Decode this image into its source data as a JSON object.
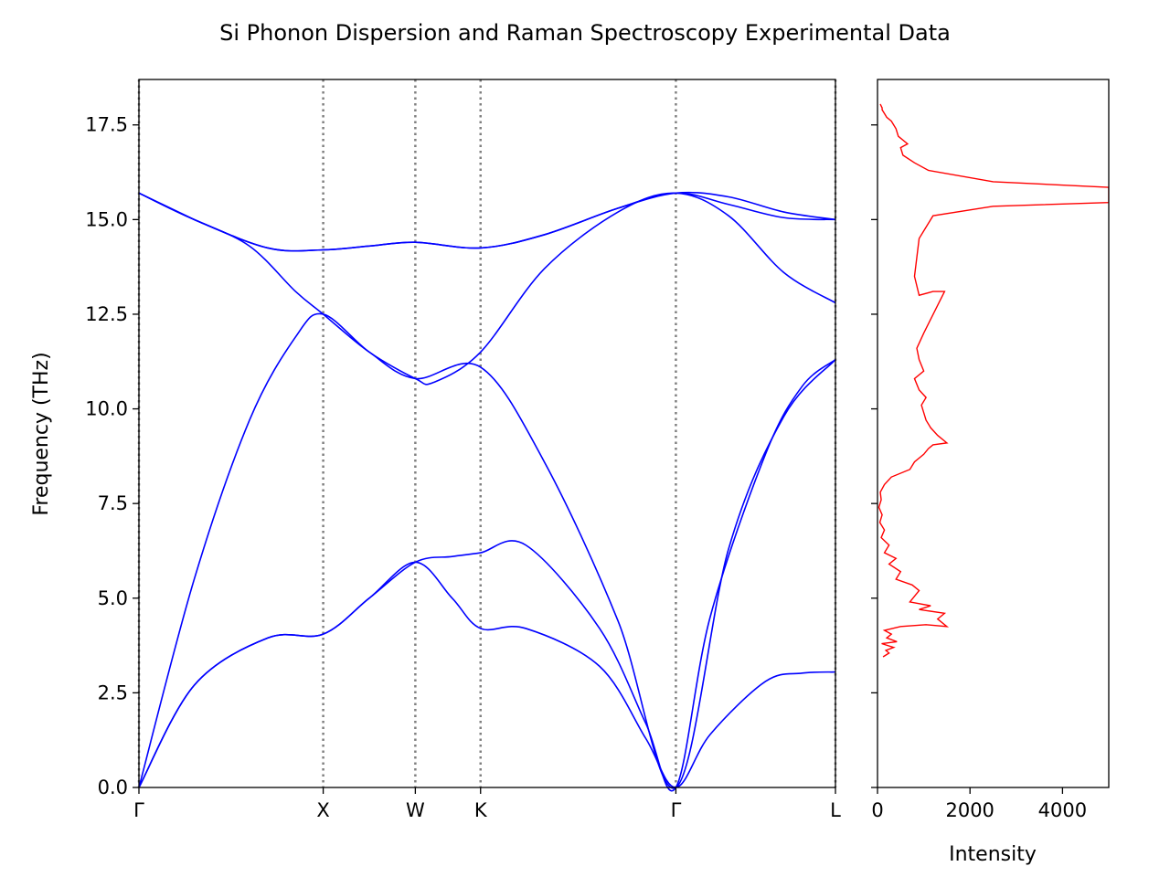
{
  "chart_data": [
    {
      "type": "line",
      "title": "Si Phonon Dispersion and Raman Spectroscopy Experimental Data",
      "xlabel": "",
      "ylabel": "Frequency (THz)",
      "ylim": [
        0,
        18.7
      ],
      "y_ticks": [
        "0.0",
        "2.5",
        "5.0",
        "7.5",
        "10.0",
        "12.5",
        "15.0",
        "17.5"
      ],
      "x_ticks": [
        {
          "label": "Γ",
          "pos": 0.0
        },
        {
          "label": "X",
          "pos": 1.0
        },
        {
          "label": "W",
          "pos": 1.5
        },
        {
          "label": "K",
          "pos": 1.854
        },
        {
          "label": "Γ",
          "pos": 2.914
        },
        {
          "label": "L",
          "pos": 3.78
        }
      ],
      "x_range": [
        0,
        3.78
      ],
      "grid": "vertical dotted lines at high-symmetry points",
      "line_color": "#0000ff",
      "series": [
        {
          "x": [
            0,
            0.3,
            0.7,
            1.0,
            1.25,
            1.5,
            1.7,
            1.854,
            2.1,
            2.5,
            2.75,
            2.914,
            3.1,
            3.4,
            3.6,
            3.78
          ],
          "y": [
            0,
            2.7,
            3.95,
            4.05,
            5.0,
            5.95,
            5.0,
            4.2,
            4.2,
            3.2,
            1.3,
            0,
            1.4,
            2.8,
            3.02,
            3.05
          ]
        },
        {
          "x": [
            0,
            0.3,
            0.7,
            1.0,
            1.25,
            1.5,
            1.7,
            1.854,
            2.1,
            2.5,
            2.75,
            2.914,
            3.1,
            3.4,
            3.6,
            3.78
          ],
          "y": [
            0,
            2.7,
            3.95,
            4.05,
            5.0,
            5.95,
            6.1,
            6.2,
            6.4,
            4.2,
            1.7,
            0,
            4.5,
            8.8,
            10.6,
            11.3
          ]
        },
        {
          "x": [
            0,
            0.3,
            0.6,
            0.85,
            1.0,
            1.25,
            1.5,
            1.854,
            2.2,
            2.6,
            2.914,
            3.2,
            3.5,
            3.78
          ],
          "y": [
            0,
            5.5,
            9.7,
            11.9,
            12.5,
            11.5,
            10.8,
            11.1,
            8.6,
            4.4,
            0,
            6.3,
            9.8,
            11.3
          ]
        },
        {
          "x": [
            0,
            0.3,
            0.6,
            0.85,
            1.0,
            1.25,
            1.5,
            1.6,
            1.854,
            2.2,
            2.6,
            2.914,
            3.2,
            3.5,
            3.78
          ],
          "y": [
            15.7,
            15.0,
            14.3,
            13.1,
            12.5,
            11.5,
            10.8,
            10.7,
            11.5,
            13.7,
            15.2,
            15.7,
            15.1,
            13.6,
            12.8
          ]
        },
        {
          "x": [
            0,
            0.3,
            0.7,
            1.0,
            1.25,
            1.5,
            1.854,
            2.2,
            2.6,
            2.914,
            3.2,
            3.5,
            3.78
          ],
          "y": [
            15.7,
            15.0,
            14.25,
            14.2,
            14.3,
            14.4,
            14.25,
            14.6,
            15.3,
            15.7,
            15.4,
            15.05,
            15.0
          ]
        },
        {
          "x": [
            0,
            0.3,
            0.7,
            1.0,
            1.25,
            1.5,
            1.854,
            2.2,
            2.6,
            2.914,
            3.2,
            3.5,
            3.78
          ],
          "y": [
            15.7,
            15.0,
            14.25,
            14.2,
            14.3,
            14.4,
            14.25,
            14.6,
            15.3,
            15.7,
            15.6,
            15.2,
            15.0
          ]
        }
      ]
    },
    {
      "type": "line",
      "xlabel": "Intensity",
      "ylabel": "",
      "xlim": [
        0,
        5000
      ],
      "ylim": [
        0,
        18.7
      ],
      "x_ticks": [
        "0",
        "2000",
        "4000"
      ],
      "line_color": "#ff0000",
      "series": [
        {
          "intensity": [
            120,
            250,
            180,
            350,
            90,
            420,
            200,
            300,
            150,
            500,
            1050,
            1500,
            1300,
            1450,
            900,
            1150,
            700,
            800,
            900,
            750,
            400,
            500,
            250,
            400,
            150,
            250,
            80,
            150,
            50,
            100,
            30,
            80,
            60,
            150,
            300,
            700,
            800,
            1000,
            1100,
            1200,
            1500,
            1300,
            1150,
            1050,
            1000,
            950,
            1050,
            900,
            800,
            1000,
            900,
            850,
            1000,
            1450,
            1200,
            900,
            800,
            850,
            900,
            1100,
            1200,
            2500,
            5000,
            5000,
            2500,
            1100,
            800,
            550,
            500,
            650,
            450,
            400,
            350,
            300,
            200,
            150,
            100,
            100,
            80,
            60
          ],
          "freq": [
            3.45,
            3.55,
            3.62,
            3.7,
            3.8,
            3.85,
            3.95,
            4.05,
            4.15,
            4.25,
            4.3,
            4.25,
            4.45,
            4.6,
            4.7,
            4.8,
            4.9,
            5.05,
            5.2,
            5.35,
            5.5,
            5.7,
            5.9,
            6.05,
            6.2,
            6.4,
            6.6,
            6.8,
            7.0,
            7.2,
            7.4,
            7.6,
            7.8,
            8.0,
            8.2,
            8.4,
            8.6,
            8.8,
            8.95,
            9.05,
            9.1,
            9.3,
            9.5,
            9.7,
            9.9,
            10.1,
            10.3,
            10.5,
            10.8,
            11.0,
            11.3,
            11.6,
            12.0,
            13.1,
            13.1,
            13.0,
            13.5,
            14.0,
            14.5,
            14.9,
            15.1,
            15.35,
            15.45,
            15.85,
            16.0,
            16.3,
            16.5,
            16.7,
            16.9,
            17.0,
            17.2,
            17.4,
            17.5,
            17.6,
            17.7,
            17.8,
            17.9,
            17.95,
            18.0,
            18.05
          ]
        }
      ]
    }
  ]
}
